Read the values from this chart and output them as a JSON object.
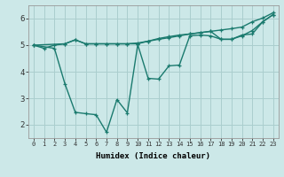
{
  "line1_x": [
    0,
    1,
    2,
    3,
    4,
    5,
    6,
    7,
    8,
    9,
    10,
    11,
    12,
    13,
    14,
    15,
    16,
    17,
    18,
    19,
    20,
    21,
    22,
    23
  ],
  "line1_y": [
    5.0,
    4.88,
    5.0,
    5.05,
    5.2,
    5.05,
    5.05,
    5.05,
    5.05,
    5.05,
    5.08,
    5.15,
    5.22,
    5.28,
    5.35,
    5.42,
    5.47,
    5.52,
    5.57,
    5.62,
    5.68,
    5.88,
    6.02,
    6.22
  ],
  "line2_x": [
    0,
    3,
    4,
    5,
    6,
    7,
    8,
    9,
    10,
    11,
    12,
    13,
    14,
    15,
    16,
    17,
    18,
    19,
    20,
    21,
    22,
    23
  ],
  "line2_y": [
    5.0,
    5.05,
    5.2,
    5.05,
    5.05,
    5.05,
    5.05,
    5.05,
    5.05,
    5.15,
    5.25,
    5.32,
    5.38,
    5.42,
    5.47,
    5.52,
    5.22,
    5.22,
    5.38,
    5.42,
    5.88,
    6.15
  ],
  "line3_x": [
    0,
    2,
    3,
    4,
    5,
    6,
    7,
    8,
    9,
    10,
    11,
    12,
    13,
    14,
    15,
    16,
    17,
    18,
    19,
    20,
    21,
    22,
    23
  ],
  "line3_y": [
    5.0,
    4.88,
    3.55,
    2.47,
    2.42,
    2.38,
    1.72,
    2.95,
    2.45,
    5.02,
    3.75,
    3.72,
    4.22,
    4.25,
    5.35,
    5.38,
    5.35,
    5.22,
    5.22,
    5.35,
    5.55,
    5.88,
    6.15
  ],
  "line_color": "#1a7a6e",
  "bg_color": "#cce8e8",
  "grid_color": "#aacece",
  "xlabel": "Humidex (Indice chaleur)",
  "ylim": [
    1.5,
    6.5
  ],
  "xlim": [
    -0.5,
    23.5
  ],
  "xticks": [
    0,
    1,
    2,
    3,
    4,
    5,
    6,
    7,
    8,
    9,
    10,
    11,
    12,
    13,
    14,
    15,
    16,
    17,
    18,
    19,
    20,
    21,
    22,
    23
  ],
  "yticks": [
    2,
    3,
    4,
    5,
    6
  ],
  "marker": "+",
  "markersize": 3.5,
  "linewidth": 1.0
}
